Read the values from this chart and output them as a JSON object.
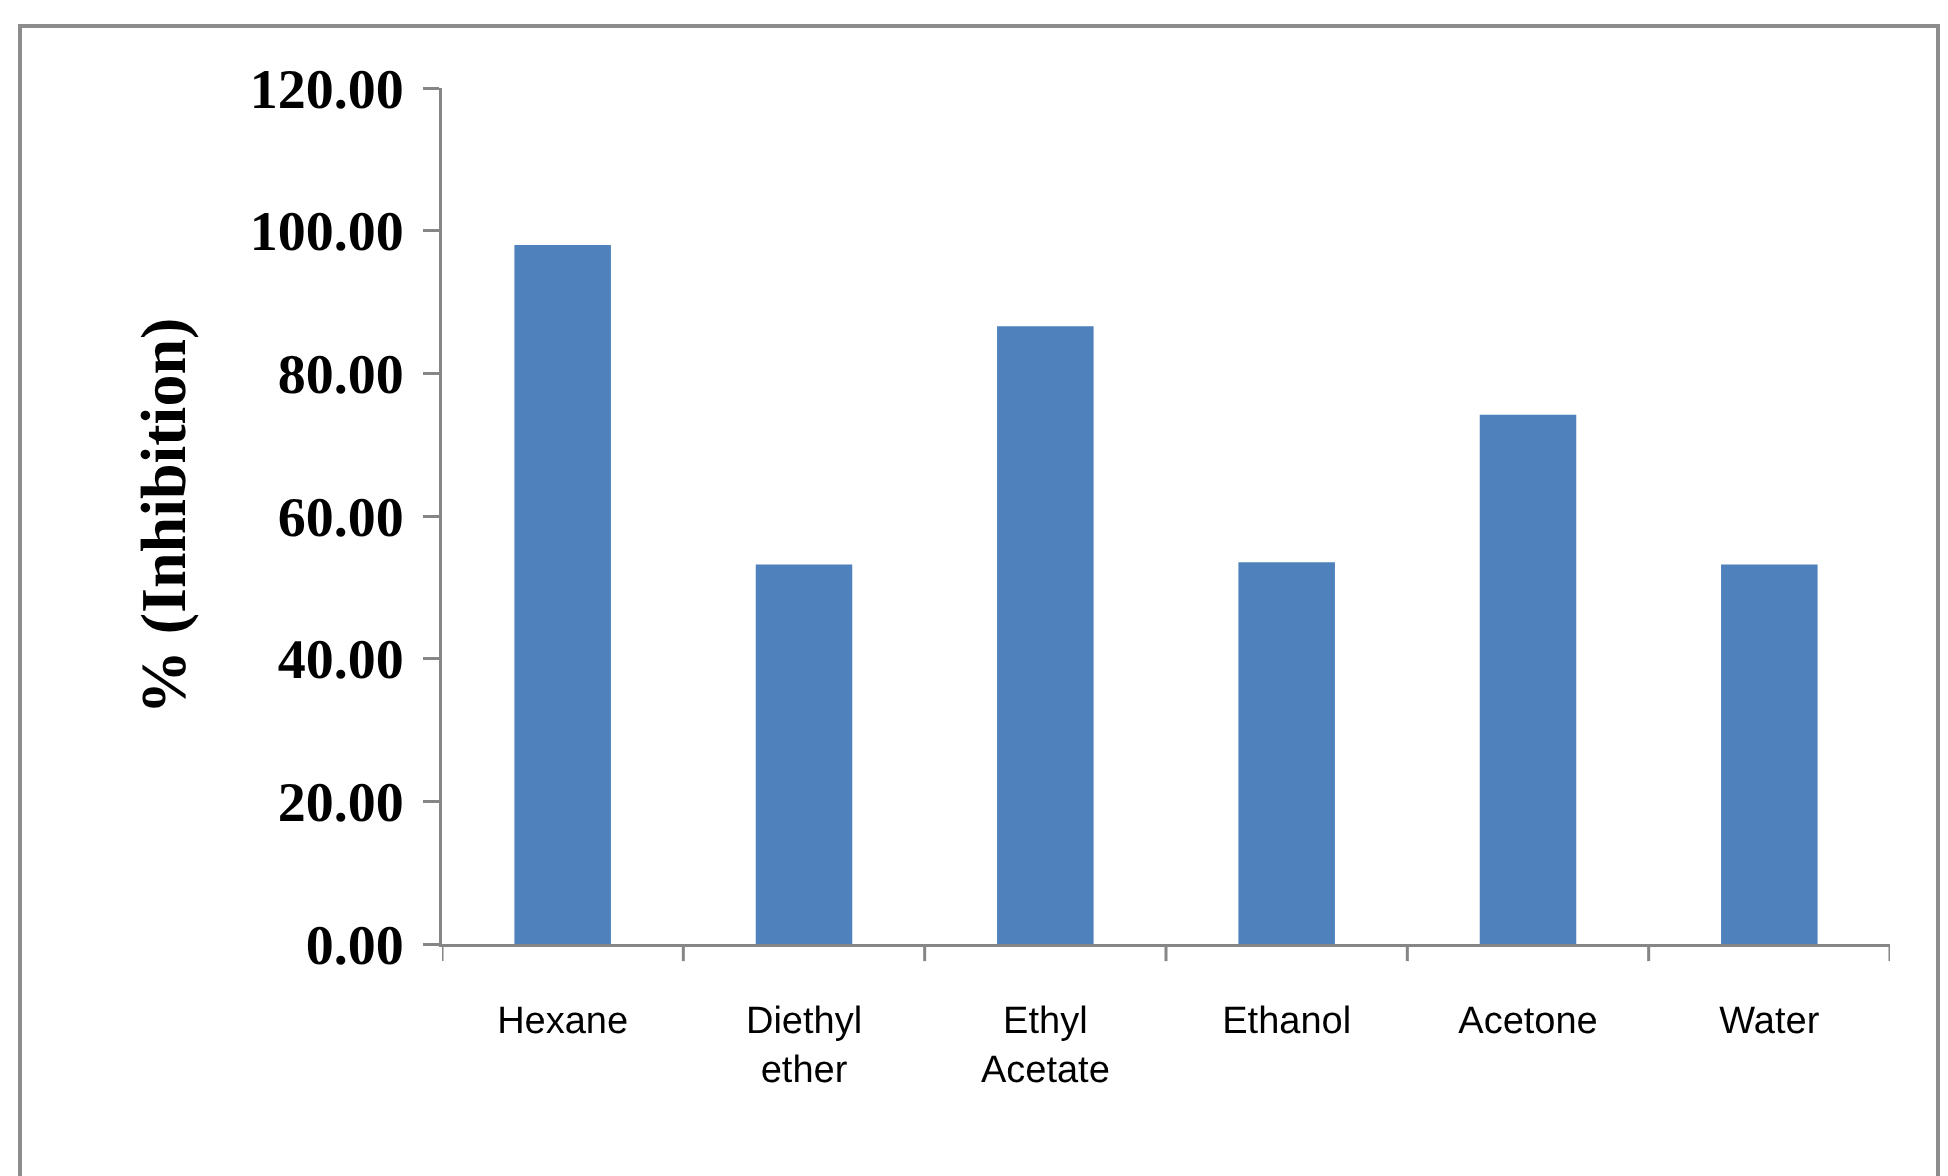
{
  "chart_data": {
    "type": "bar",
    "ylabel": "% (Inhibition)",
    "categories": [
      "Hexane",
      "Diethyl ether",
      "Ethyl Acetate",
      "Ethanol",
      "Acetone",
      "Water"
    ],
    "values": [
      98.0,
      53.2,
      86.6,
      53.5,
      74.2,
      53.2
    ],
    "color": "#4f81bd",
    "ylim": [
      0,
      120
    ],
    "yticks": [
      {
        "value": 0,
        "label": "0.00"
      },
      {
        "value": 20,
        "label": "20.00"
      },
      {
        "value": 40,
        "label": "40.00"
      },
      {
        "value": 60,
        "label": "60.00"
      },
      {
        "value": 80,
        "label": "80.00"
      },
      {
        "value": 100,
        "label": "100.00"
      },
      {
        "value": 120,
        "label": "120.00"
      }
    ]
  }
}
